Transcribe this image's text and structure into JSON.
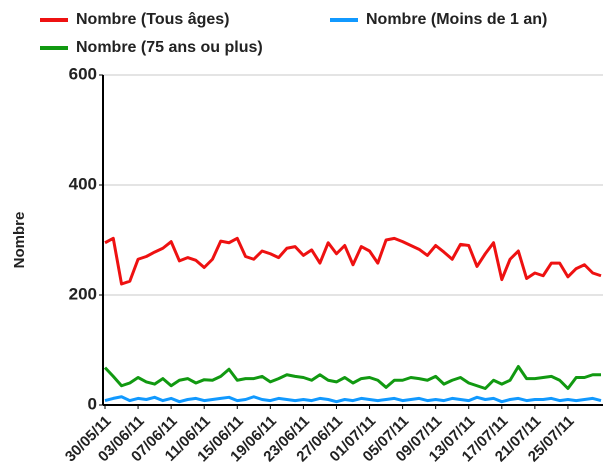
{
  "chart_data": {
    "type": "line",
    "y_label": "Nombre",
    "categories": [
      "30/05/11",
      null,
      null,
      null,
      "03/06/11",
      null,
      null,
      null,
      "07/06/11",
      null,
      null,
      null,
      "11/06/11",
      null,
      null,
      null,
      "15/06/11",
      null,
      null,
      null,
      "19/06/11",
      null,
      null,
      null,
      "23/06/11",
      null,
      null,
      null,
      "27/06/11",
      null,
      null,
      null,
      "01/07/11",
      null,
      null,
      null,
      "05/07/11",
      null,
      null,
      null,
      "09/07/11",
      null,
      null,
      null,
      "13/07/11",
      null,
      null,
      null,
      "17/07/11",
      null,
      null,
      null,
      "21/07/11",
      null,
      null,
      null,
      "25/07/11",
      null,
      null,
      null,
      null
    ],
    "series": [
      {
        "name": "Nombre (Tous âges)",
        "color": "#ee1111",
        "values": [
          295,
          303,
          220,
          225,
          265,
          270,
          278,
          285,
          297,
          262,
          268,
          263,
          250,
          265,
          298,
          295,
          303,
          270,
          265,
          280,
          275,
          268,
          285,
          288,
          272,
          282,
          258,
          295,
          275,
          290,
          255,
          288,
          280,
          258,
          300,
          303,
          297,
          290,
          283,
          272,
          290,
          278,
          265,
          292,
          290,
          252,
          275,
          295,
          228,
          265,
          280,
          230,
          240,
          235,
          258,
          258,
          233,
          248,
          255,
          240,
          235
        ]
      },
      {
        "name": "Nombre (Moins de 1 an)",
        "color": "#1199ff",
        "values": [
          8,
          12,
          15,
          8,
          12,
          10,
          14,
          8,
          12,
          6,
          10,
          12,
          8,
          10,
          12,
          14,
          8,
          10,
          15,
          10,
          8,
          12,
          10,
          8,
          10,
          8,
          12,
          10,
          6,
          10,
          8,
          12,
          10,
          8,
          10,
          12,
          8,
          10,
          12,
          8,
          10,
          8,
          12,
          10,
          8,
          14,
          10,
          12,
          6,
          10,
          12,
          8,
          10,
          10,
          12,
          8,
          10,
          8,
          10,
          12,
          8
        ]
      },
      {
        "name": "Nombre (75 ans ou plus)",
        "color": "#119911",
        "values": [
          68,
          52,
          35,
          40,
          50,
          42,
          38,
          48,
          35,
          45,
          48,
          40,
          46,
          45,
          52,
          65,
          45,
          48,
          48,
          52,
          42,
          48,
          55,
          52,
          50,
          45,
          55,
          45,
          42,
          50,
          40,
          48,
          50,
          45,
          32,
          45,
          45,
          50,
          48,
          45,
          52,
          38,
          45,
          50,
          40,
          35,
          30,
          45,
          38,
          45,
          70,
          48,
          48,
          50,
          52,
          45,
          30,
          50,
          50,
          55,
          55
        ]
      }
    ],
    "ylim": [
      0,
      600
    ],
    "yticks": [
      0,
      200,
      400,
      600
    ],
    "grid": true
  }
}
